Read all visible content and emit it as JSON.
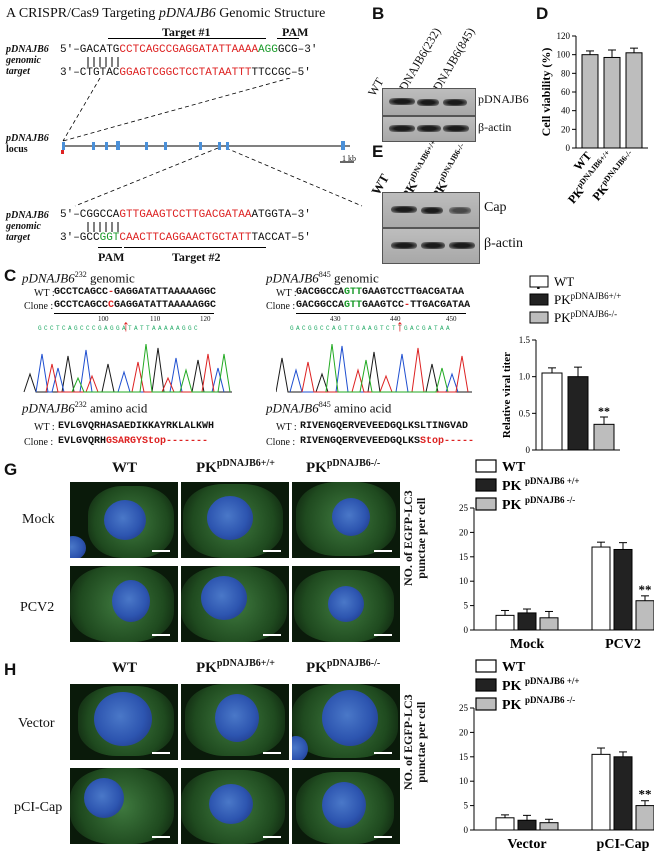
{
  "panelA": {
    "label": "A",
    "title_prefix": "A CRISPR/Cas9 Targeting ",
    "title_gene": "pDNAJB6",
    "title_suffix": " Genomic Structure",
    "gene": "pDNAJB6",
    "genomic": "genomic",
    "target_word": "target",
    "locus": "locus",
    "target1": "Target #1",
    "pam": "PAM",
    "target2": "Target #2",
    "scale": "1 kb",
    "seq1_top_a": "5'–GACATG",
    "seq1_top_red": "CCTCAGCCGAGGATATTAAAA",
    "seq1_top_grn": "AGG",
    "seq1_top_b": "GCG–3'",
    "seq1_bot_a": "3'–CTGTAC",
    "seq1_bot_red": "GGAGTCGGCTCCTATAATTT",
    "seq1_bot_b": "TTCCGC–5'",
    "seq2_top_a": "5'–CGGCCA",
    "seq2_top_red": "GTTGAAGTCCTTGACGATAA",
    "seq2_top_b": "ATGGTA–3'",
    "seq2_bot_a": "3'–GCC",
    "seq2_bot_grn": "GGT",
    "seq2_bot_red": "CAACTTCAGGAACTGCTATT",
    "seq2_bot_b": "TACCAT–5'"
  },
  "panelB": {
    "label": "B",
    "lanes": [
      "WT",
      "pDNAJB6(232)",
      "pDNAJB6(845)"
    ],
    "rows": [
      "pDNAJB6",
      "β-actin"
    ]
  },
  "panelD": {
    "label": "D",
    "ylabel": "Cell viability  (%)",
    "xlabels": [
      "WT",
      "PK pDNAJB6+/+",
      "PK pDNAJB6-/-"
    ]
  },
  "panelE": {
    "label": "E",
    "lanes": [
      "WT",
      "PK pDNAJB6+/+",
      "PK pDNAJB6-/-"
    ],
    "rows": [
      "Cap",
      "β-actin"
    ]
  },
  "panelC": {
    "label": "C",
    "left_title_gene": "pDNAJB6",
    "left_title_sup": "232",
    "left_title_rest": " genomic",
    "right_title_gene": "pDNAJB6",
    "right_title_sup": "845",
    "right_title_rest": " genomic",
    "wt_lbl": "WT :",
    "clone_lbl": "Clone :",
    "l_wt_a": "GCCTCAGCC",
    "l_wt_red": "-",
    "l_wt_b": "GAGGATATTAAAAAGGC",
    "l_cl_a": "GCCTCAGCC",
    "l_cl_red": "C",
    "l_cl_b": "GAGGATATTAAAAAGGC",
    "l_ticks": [
      "100",
      "110",
      "120"
    ],
    "l_trace_seq": "G C C T C A G C C C G A G G A T A T T A A A A A G G C",
    "r_wt_a": "GACGGCCA",
    "r_wt_grn": "GTT",
    "r_wt_b": "GAAGTCCTTGACGATAA",
    "r_cl_a": "GACGGCCA",
    "r_cl_grn": "GTT",
    "r_cl_b": "GAAGTCC",
    "r_cl_red": "-",
    "r_cl_c": "TTGACGATAA",
    "r_ticks": [
      "430",
      "440",
      "450"
    ],
    "r_trace_seq": "G A C G G C C A G T T G A A G T C T T G A C G A T A A",
    "aa_left_title_gene": "pDNAJB6",
    "aa_left_title_sup": "232",
    "aa_left_title_rest": " amino acid",
    "aa_right_title_gene": "pDNAJB6",
    "aa_right_title_sup": "845",
    "aa_right_title_rest": " amino acid",
    "aa_wt_lbl": "WT :",
    "aa_clone_lbl": "Clone :",
    "l_aa_wt": "EVLGVQRHASAEDIKKAYRKLALKWH",
    "l_aa_cl_a": "EVLGVQRH",
    "l_aa_cl_red": "GSARGYStop-------",
    "r_aa_wt": "RIVENGQERVEVEEDGQLKSLTINGVAD",
    "r_aa_cl_a": "RIVENGQERVEVEEDGQLKS",
    "r_aa_cl_red": "Stop-----"
  },
  "panelF": {
    "label": "F",
    "legend": [
      "WT",
      "PK pDNAJB6+/+",
      "PK pDNAJB6-/-"
    ],
    "ylabel": "Relative viral titer"
  },
  "panelG": {
    "label": "G",
    "cols": [
      "WT",
      "PK",
      "PK"
    ],
    "col_sups": [
      "",
      "pDNAJB6+/+",
      "pDNAJB6-/-"
    ],
    "rows": [
      "Mock",
      "PCV2"
    ],
    "legend": [
      "WT",
      "PK pDNAJB6 +/+",
      "PK pDNAJB6 -/-"
    ],
    "ylabel1": "NO. of EGFP-LC3",
    "ylabel2": "punctae per cell"
  },
  "panelH": {
    "label": "H",
    "cols": [
      "WT",
      "PK",
      "PK"
    ],
    "col_sups": [
      "",
      "pDNAJB6+/+",
      "pDNAJB6-/-"
    ],
    "rows": [
      "Vector",
      "pCI-Cap"
    ],
    "legend": [
      "WT",
      "PK pDNAJB6 +/+",
      "PK pDNAJB6 -/-"
    ],
    "ylabel1": "NO. of EGFP-LC3",
    "ylabel2": "punctae per cell"
  },
  "colors": {
    "wt": "#ffffff",
    "pk_wt": "#222222",
    "pk_ko": "#bdbdbd",
    "target_red": "#d22222",
    "pam_green": "#1a9a2a"
  },
  "chart_data": [
    {
      "type": "bar",
      "id": "D",
      "categories": [
        "WT",
        "PK pDNAJB6+/+",
        "PK pDNAJB6-/-"
      ],
      "values": [
        100,
        97,
        102
      ],
      "errors": [
        4,
        8,
        5
      ],
      "ylabel": "Cell viability  (%)",
      "ylim": [
        0,
        120
      ],
      "yticks": [
        0,
        20,
        40,
        60,
        80,
        100,
        120
      ]
    },
    {
      "type": "bar",
      "id": "F",
      "categories": [
        "WT",
        "PK pDNAJB6+/+",
        "PK pDNAJB6-/-"
      ],
      "values": [
        1.05,
        1.0,
        0.35
      ],
      "errors": [
        0.07,
        0.13,
        0.1
      ],
      "annotation": "**",
      "ylabel": "Relative viral titer",
      "ylim": [
        0,
        1.5
      ],
      "yticks": [
        0,
        0.5,
        1.0,
        1.5
      ]
    },
    {
      "type": "bar",
      "id": "G",
      "categories": [
        "Mock",
        "PCV2"
      ],
      "series": [
        {
          "name": "WT",
          "values": [
            3.0,
            17.0
          ],
          "errors": [
            1.0,
            1.0
          ]
        },
        {
          "name": "PK pDNAJB6 +/+",
          "values": [
            3.5,
            16.5
          ],
          "errors": [
            0.8,
            1.4
          ]
        },
        {
          "name": "PK pDNAJB6 -/-",
          "values": [
            2.5,
            6.0
          ],
          "errors": [
            1.3,
            1.0
          ]
        }
      ],
      "annotation": "**",
      "ylabel": "NO. of EGFP-LC3 punctae per cell",
      "ylim": [
        0,
        25
      ],
      "yticks": [
        0,
        5,
        10,
        15,
        20,
        25
      ]
    },
    {
      "type": "bar",
      "id": "H",
      "categories": [
        "Vector",
        "pCI-Cap"
      ],
      "series": [
        {
          "name": "WT",
          "values": [
            2.5,
            15.5
          ],
          "errors": [
            0.6,
            1.3
          ]
        },
        {
          "name": "PK pDNAJB6 +/+",
          "values": [
            2.0,
            15.0
          ],
          "errors": [
            1.0,
            1.0
          ]
        },
        {
          "name": "PK pDNAJB6 -/-",
          "values": [
            1.5,
            5.0
          ],
          "errors": [
            0.7,
            1.0
          ]
        }
      ],
      "annotation": "**",
      "ylabel": "NO. of EGFP-LC3 punctae per cell",
      "ylim": [
        0,
        25
      ],
      "yticks": [
        0,
        5,
        10,
        15,
        20,
        25
      ]
    }
  ]
}
